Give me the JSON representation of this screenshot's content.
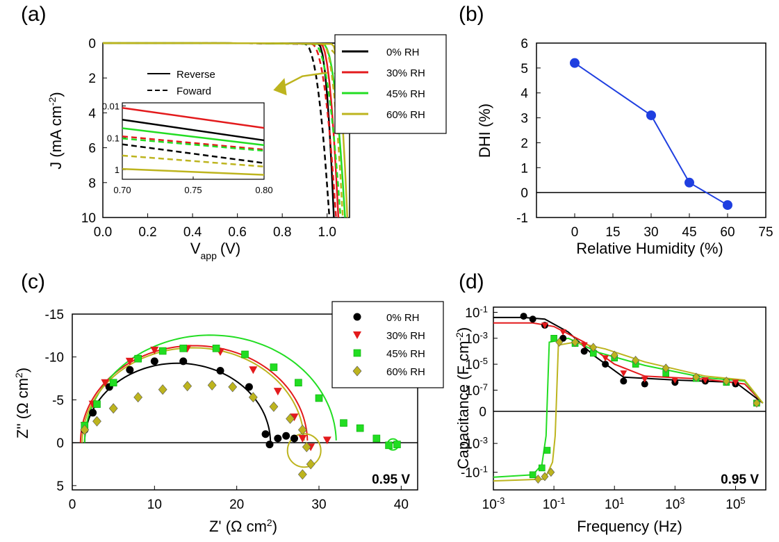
{
  "panels": {
    "a": {
      "label": "(a)"
    },
    "b": {
      "label": "(b)"
    },
    "c": {
      "label": "(c)"
    },
    "d": {
      "label": "(d)"
    }
  },
  "colors": {
    "rh0": "#000000",
    "rh30": "#e31a1c",
    "rh45": "#22dd22",
    "rh60": "#bdb41e",
    "dhi": "#1f3fe0"
  },
  "chart_data": [
    {
      "id": "a",
      "type": "line",
      "title": "",
      "xlabel_main": "V",
      "xlabel_sub": "app",
      "xlabel_unit": "(V)",
      "ylabel": "J (mA cm",
      "ylabel_sup": "-2",
      "ylabel_close": ")",
      "xlim": [
        0.0,
        1.1
      ],
      "ylim": [
        10,
        0
      ],
      "xticks": [
        "0.0",
        "0.2",
        "0.4",
        "0.6",
        "0.8",
        "1.0"
      ],
      "yticks": [
        "0",
        "2",
        "4",
        "6",
        "8",
        "10"
      ],
      "legend": [
        "0% RH",
        "30% RH",
        "45% RH",
        "60% RH"
      ],
      "linestyle_legend": [
        "Reverse",
        "Foward"
      ],
      "series": [
        {
          "name": "0% RH",
          "scan": "Reverse",
          "voc": 1.03,
          "knee": 0.96
        },
        {
          "name": "0% RH",
          "scan": "Foward",
          "voc": 1.01,
          "knee": 0.9
        },
        {
          "name": "30% RH",
          "scan": "Reverse",
          "voc": 1.05,
          "knee": 0.97
        },
        {
          "name": "30% RH",
          "scan": "Foward",
          "voc": 1.04,
          "knee": 0.93
        },
        {
          "name": "45% RH",
          "scan": "Reverse",
          "voc": 1.08,
          "knee": 0.98
        },
        {
          "name": "45% RH",
          "scan": "Foward",
          "voc": 1.06,
          "knee": 0.94
        },
        {
          "name": "60% RH",
          "scan": "Reverse",
          "voc": 1.09,
          "knee": 1.02
        },
        {
          "name": "60% RH",
          "scan": "Foward",
          "voc": 1.07,
          "knee": 0.98
        }
      ],
      "inset": {
        "xlim": [
          0.7,
          0.8
        ],
        "xticks": [
          "0.70",
          "0.75",
          "0.80"
        ],
        "yticks": [
          "0.01",
          "0.1",
          "1"
        ],
        "log_y": true,
        "series": [
          {
            "name": "30% RH",
            "scan": "Reverse",
            "y": [
              0.0115,
              0.049
            ]
          },
          {
            "name": "0% RH",
            "scan": "Reverse",
            "y": [
              0.027,
              0.12
            ]
          },
          {
            "name": "45% RH",
            "scan": "Reverse",
            "y": [
              0.05,
              0.17
            ]
          },
          {
            "name": "30% RH",
            "scan": "Foward",
            "y": [
              0.09,
              0.235
            ]
          },
          {
            "name": "45% RH",
            "scan": "Foward",
            "y": [
              0.105,
              0.255
            ]
          },
          {
            "name": "0% RH",
            "scan": "Foward",
            "y": [
              0.16,
              0.62
            ]
          },
          {
            "name": "60% RH",
            "scan": "Foward",
            "y": [
              0.36,
              0.8
            ]
          },
          {
            "name": "60% RH",
            "scan": "Reverse",
            "y": [
              0.95,
              1.45
            ]
          }
        ]
      }
    },
    {
      "id": "b",
      "type": "line",
      "title": "",
      "xlabel": "Relative Humidity (%)",
      "ylabel": "DHI (%)",
      "xlim": [
        -15,
        75
      ],
      "ylim": [
        -1,
        6
      ],
      "xticks": [
        "0",
        "15",
        "30",
        "45",
        "60",
        "75"
      ],
      "yticks": [
        "-1",
        "0",
        "1",
        "2",
        "3",
        "4",
        "5",
        "6"
      ],
      "x": [
        0,
        30,
        45,
        60
      ],
      "y": [
        5.2,
        3.1,
        0.4,
        -0.5
      ]
    },
    {
      "id": "c",
      "type": "scatter",
      "title": "",
      "xlabel": "Z' (Ω cm",
      "xlabel_sup": "2",
      "xlabel_close": ")",
      "ylabel": "Z'' (Ω cm",
      "ylabel_sup": "2",
      "ylabel_close": ")",
      "annotation": "0.95 V",
      "xlim": [
        0,
        42
      ],
      "ylim": [
        5.5,
        -15
      ],
      "xticks": [
        "0",
        "10",
        "20",
        "30",
        "40"
      ],
      "yticks": [
        "-15",
        "-10",
        "-5",
        "0",
        "5"
      ],
      "legend": [
        "0% RH",
        "30% RH",
        "45% RH",
        "60% RH"
      ],
      "series": [
        {
          "name": "0% RH",
          "marker": "circle",
          "x": [
            1.5,
            2.5,
            4.5,
            7,
            10,
            13.5,
            18,
            21.5,
            23.5,
            24,
            25,
            26,
            27
          ],
          "y": [
            -1.5,
            -3.5,
            -6.5,
            -8.5,
            -9.5,
            -9.5,
            -8.4,
            -6.5,
            -1,
            0.2,
            -0.5,
            -0.8,
            -0.5
          ]
        },
        {
          "name": "30% RH",
          "marker": "triangle-down",
          "x": [
            1.5,
            2.5,
            4,
            7,
            10,
            14,
            18,
            22,
            25,
            27,
            28,
            29,
            31
          ],
          "y": [
            -2,
            -4.5,
            -7,
            -9.5,
            -10.8,
            -11,
            -10.6,
            -8.5,
            -6,
            -3,
            -0.5,
            0.5,
            -0.3
          ]
        },
        {
          "name": "45% RH",
          "marker": "square",
          "x": [
            1.5,
            3,
            5,
            8,
            11,
            13.5,
            17.5,
            21,
            24.5,
            27.5,
            30,
            33,
            35,
            37,
            38.5,
            39.5
          ],
          "y": [
            -2,
            -4.5,
            -7,
            -9.8,
            -10.7,
            -11,
            -11,
            -10.3,
            -8.8,
            -7,
            -5.2,
            -2.3,
            -1.7,
            -0.5,
            0.3,
            0.2
          ]
        },
        {
          "name": "60% RH",
          "marker": "diamond",
          "x": [
            1.5,
            3,
            5,
            8,
            11,
            14,
            17,
            19.5,
            22,
            24.5,
            26.5,
            28,
            28.5,
            29,
            28
          ],
          "y": [
            -1.5,
            -2.5,
            -4,
            -5.3,
            -6.2,
            -6.6,
            -6.7,
            -6.5,
            -5.3,
            -4.2,
            -2.8,
            -1.5,
            0.5,
            2.5,
            3.7
          ]
        }
      ],
      "fits": [
        {
          "name": "0% RH",
          "center": [
            12.8,
            0
          ],
          "radius": 11.3
        },
        {
          "name": "30% RH",
          "center": [
            14.8,
            0
          ],
          "radius": 13.8
        },
        {
          "name": "45% RH",
          "center": [
            16.8,
            0
          ],
          "radius": 15.3
        },
        {
          "name": "60% RH",
          "center": [
            14.7,
            0
          ],
          "radius": 13.5
        }
      ]
    },
    {
      "id": "d",
      "type": "scatter",
      "title": "",
      "xlabel": "Frequency (Hz)",
      "ylabel": "Capacitance (F cm",
      "ylabel_sup": "-2",
      "ylabel_close": ")",
      "annotation": "0.95 V",
      "log_x": true,
      "xlim": [
        0.001,
        1000000
      ],
      "xticks": [
        "10-3",
        "10-1",
        "10 1",
        "10 3",
        "10 5"
      ],
      "yticks_upper": [
        "10-1",
        "10-3",
        "10-5",
        "10-7",
        "0"
      ],
      "yticks_lower": [
        "-10-3",
        "-10-1"
      ],
      "legend": [
        "0% RH",
        "30% RH",
        "45% RH",
        "60% RH"
      ],
      "series": [
        {
          "name": "0% RH",
          "x": [
            0.01,
            0.02,
            0.05,
            0.2,
            1,
            5,
            20,
            100,
            1000,
            10000,
            100000,
            500000
          ],
          "y": [
            0.05,
            0.03,
            0.01,
            0.001,
            0.0001,
            1e-05,
            5e-07,
            3e-07,
            4e-07,
            5e-07,
            3e-07,
            1e-08
          ]
        },
        {
          "name": "30% RH",
          "x": [
            0.05,
            0.2,
            1,
            5,
            20,
            100,
            1000,
            10000,
            100000,
            500000
          ],
          "y": [
            0.01,
            0.003,
            0.0003,
            3e-05,
            2e-06,
            7e-07,
            6e-07,
            6e-07,
            4e-07,
            1e-08
          ]
        },
        {
          "name": "45% RH",
          "x": [
            0.02,
            0.04,
            0.06,
            0.1,
            0.5,
            2,
            10,
            50,
            500,
            5000,
            50000,
            500000
          ],
          "y": [
            -0.15,
            -0.05,
            -0.003,
            0.001,
            0.0004,
            7e-05,
            3e-05,
            1e-05,
            2e-06,
            8e-07,
            4e-07,
            1e-08
          ]
        },
        {
          "name": "60% RH",
          "x": [
            0.03,
            0.05,
            0.08,
            0.15,
            0.5,
            2,
            10,
            50,
            500,
            5000,
            50000,
            500000
          ],
          "y": [
            -0.3,
            -0.2,
            -0.1,
            0.0005,
            0.0005,
            0.0002,
            5e-05,
            2e-05,
            5e-06,
            1e-06,
            5e-07,
            1e-08
          ]
        }
      ]
    }
  ]
}
